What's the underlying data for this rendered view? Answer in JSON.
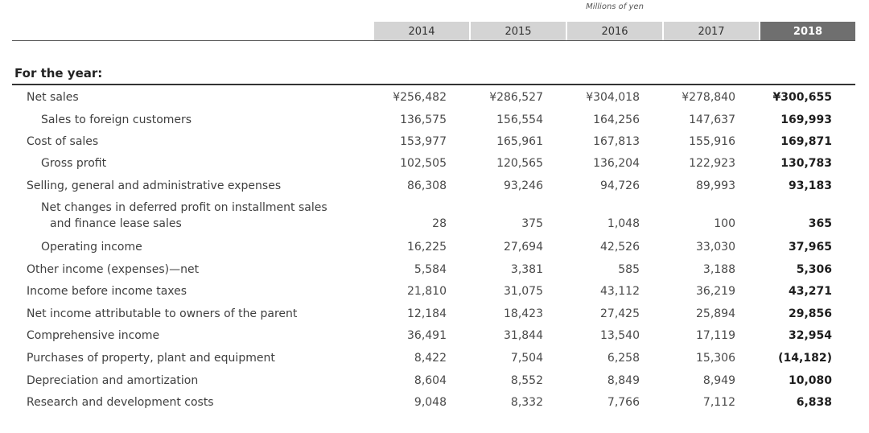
{
  "header": {
    "unit": "Millions of yen",
    "years": [
      "2014",
      "2015",
      "2016",
      "2017",
      "2018"
    ],
    "section": "For the year:"
  },
  "rows": [
    {
      "label": "Net sales",
      "indent": false,
      "values": [
        "¥256,482",
        "¥286,527",
        "¥304,018",
        "¥278,840",
        "¥300,655"
      ]
    },
    {
      "label": "Sales to foreign customers",
      "indent": true,
      "values": [
        "136,575",
        "156,554",
        "164,256",
        "147,637",
        "169,993"
      ]
    },
    {
      "label": "Cost of sales",
      "indent": false,
      "values": [
        "153,977",
        "165,961",
        "167,813",
        "155,916",
        "169,871"
      ]
    },
    {
      "label": "Gross profit",
      "indent": true,
      "values": [
        "102,505",
        "120,565",
        "136,204",
        "122,923",
        "130,783"
      ]
    },
    {
      "label": "Selling, general and administrative expenses",
      "indent": false,
      "values": [
        "86,308",
        "93,246",
        "94,726",
        "89,993",
        "93,183"
      ]
    },
    {
      "label": "Net changes in deferred profit on installment sales",
      "label2": "and finance lease sales",
      "indent": true,
      "values": [
        "28",
        "375",
        "1,048",
        "100",
        "365"
      ]
    },
    {
      "label": "Operating income",
      "indent": true,
      "values": [
        "16,225",
        "27,694",
        "42,526",
        "33,030",
        "37,965"
      ]
    },
    {
      "label": "Other income (expenses)—net",
      "indent": false,
      "values": [
        "5,584",
        "3,381",
        "585",
        "3,188",
        "5,306"
      ]
    },
    {
      "label": "Income before income taxes",
      "indent": false,
      "values": [
        "21,810",
        "31,075",
        "43,112",
        "36,219",
        "43,271"
      ]
    },
    {
      "label": "Net income attributable to owners of the parent",
      "indent": false,
      "values": [
        "12,184",
        "18,423",
        "27,425",
        "25,894",
        "29,856"
      ]
    },
    {
      "label": "Comprehensive income",
      "indent": false,
      "values": [
        "36,491",
        "31,844",
        "13,540",
        "17,119",
        "32,954"
      ]
    },
    {
      "label": "Purchases of property, plant and equipment",
      "indent": false,
      "values": [
        "8,422",
        "7,504",
        "6,258",
        "15,306",
        "(14,182)"
      ]
    },
    {
      "label": "Depreciation and amortization",
      "indent": false,
      "values": [
        "8,604",
        "8,552",
        "8,849",
        "8,949",
        "10,080"
      ]
    },
    {
      "label": "Research and development costs",
      "indent": false,
      "values": [
        "9,048",
        "8,332",
        "7,766",
        "7,112",
        "6,838"
      ]
    }
  ]
}
